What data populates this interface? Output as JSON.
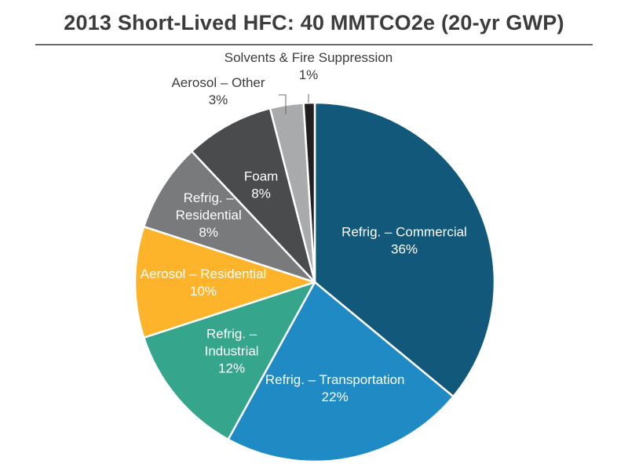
{
  "chart_data": {
    "type": "pie",
    "title": "2013 Short-Lived HFC: 40 MMTCO2e (20-yr GWP)",
    "slices": [
      {
        "label_lines": [
          "Refrig. – Commercial"
        ],
        "value": 36,
        "value_label": "36%",
        "color": "#12587b",
        "text_color": "#ffffff"
      },
      {
        "label_lines": [
          "Refrig. – Transportation"
        ],
        "value": 22,
        "value_label": "22%",
        "color": "#1f8ac4",
        "text_color": "#ffffff"
      },
      {
        "label_lines": [
          "Refrig. –",
          "Industrial"
        ],
        "value": 12,
        "value_label": "12%",
        "color": "#35a58b",
        "text_color": "#ffffff"
      },
      {
        "label_lines": [
          "Aerosol – Residential"
        ],
        "value": 10,
        "value_label": "10%",
        "color": "#fdb42a",
        "text_color": "#ffffff"
      },
      {
        "label_lines": [
          "Refrig. –",
          "Residential"
        ],
        "value": 8,
        "value_label": "8%",
        "color": "#797a7c",
        "text_color": "#ffffff"
      },
      {
        "label_lines": [
          "Foam"
        ],
        "value": 8,
        "value_label": "8%",
        "color": "#4a4b4d",
        "text_color": "#ffffff"
      },
      {
        "label_lines": [
          "Aerosol – Other"
        ],
        "value": 3,
        "value_label": "3%",
        "color": "#a9aaac",
        "text_color": "#3c3c3c"
      },
      {
        "label_lines": [
          "Solvents & Fire Suppression"
        ],
        "value": 1,
        "value_label": "1%",
        "color": "#231f20",
        "text_color": "#3c3c3c"
      }
    ]
  }
}
